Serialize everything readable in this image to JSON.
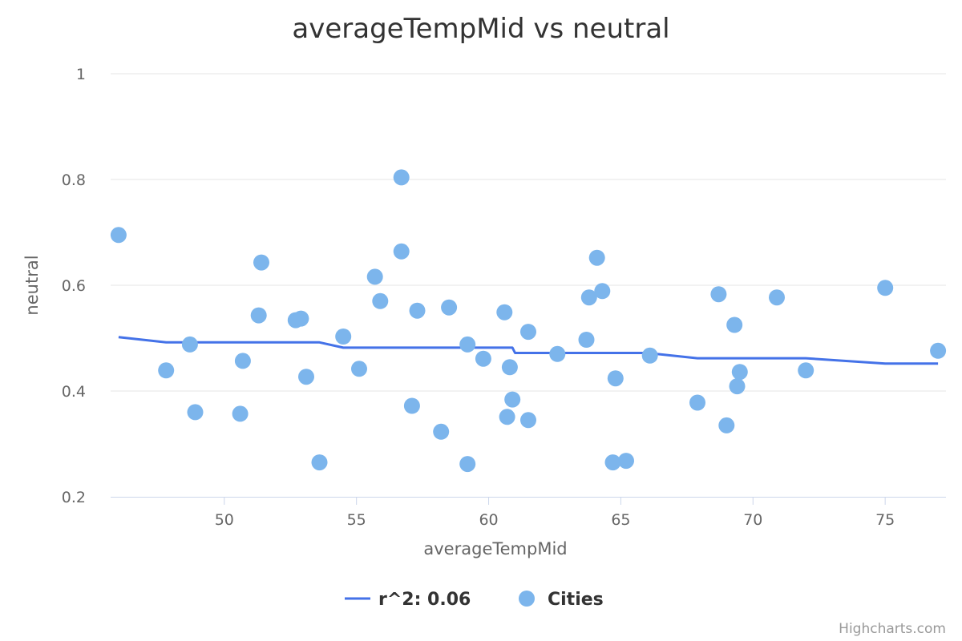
{
  "chart_data": {
    "type": "scatter",
    "title": "averageTempMid vs neutral",
    "xlabel": "averageTempMid",
    "ylabel": "neutral",
    "xlim": [
      45.7,
      77.3
    ],
    "ylim": [
      0.2,
      1.0
    ],
    "x_ticks": [
      50,
      55,
      60,
      65,
      70,
      75
    ],
    "y_ticks": [
      0.2,
      0.4,
      0.6,
      0.8,
      1.0
    ],
    "x_tick_labels": [
      "50",
      "55",
      "60",
      "65",
      "70",
      "75"
    ],
    "y_tick_labels": [
      "0.2",
      "0.4",
      "0.6",
      "0.8",
      "1"
    ],
    "grid": true,
    "legend_position": "bottom-center",
    "series": [
      {
        "name": "r^2: 0.06",
        "type": "line",
        "color": "#4472e8",
        "points": [
          [
            46.0,
            0.502
          ],
          [
            47.8,
            0.492
          ],
          [
            53.6,
            0.492
          ],
          [
            54.5,
            0.482
          ],
          [
            60.9,
            0.482
          ],
          [
            61.0,
            0.472
          ],
          [
            66.0,
            0.472
          ],
          [
            67.9,
            0.462
          ],
          [
            72.0,
            0.462
          ],
          [
            75.0,
            0.452
          ],
          [
            77.0,
            0.452
          ]
        ]
      },
      {
        "name": "Cities",
        "type": "scatter",
        "color": "#7cb5ec",
        "points": [
          [
            46.0,
            0.695
          ],
          [
            47.8,
            0.439
          ],
          [
            48.7,
            0.488
          ],
          [
            48.9,
            0.36
          ],
          [
            50.6,
            0.357
          ],
          [
            50.7,
            0.457
          ],
          [
            51.3,
            0.543
          ],
          [
            51.4,
            0.643
          ],
          [
            52.7,
            0.534
          ],
          [
            52.9,
            0.537
          ],
          [
            53.1,
            0.427
          ],
          [
            53.6,
            0.265
          ],
          [
            54.5,
            0.503
          ],
          [
            55.1,
            0.442
          ],
          [
            55.7,
            0.616
          ],
          [
            55.9,
            0.57
          ],
          [
            56.7,
            0.664
          ],
          [
            56.7,
            0.804
          ],
          [
            57.1,
            0.372
          ],
          [
            57.3,
            0.552
          ],
          [
            58.2,
            0.323
          ],
          [
            58.5,
            0.558
          ],
          [
            59.2,
            0.488
          ],
          [
            59.2,
            0.262
          ],
          [
            59.8,
            0.461
          ],
          [
            60.6,
            0.549
          ],
          [
            60.7,
            0.351
          ],
          [
            60.8,
            0.445
          ],
          [
            60.9,
            0.384
          ],
          [
            61.5,
            0.345
          ],
          [
            61.5,
            0.512
          ],
          [
            62.6,
            0.47
          ],
          [
            63.7,
            0.497
          ],
          [
            63.8,
            0.577
          ],
          [
            64.1,
            0.652
          ],
          [
            64.3,
            0.589
          ],
          [
            64.7,
            0.265
          ],
          [
            64.8,
            0.424
          ],
          [
            65.2,
            0.268
          ],
          [
            66.1,
            0.467
          ],
          [
            67.9,
            0.378
          ],
          [
            68.7,
            0.583
          ],
          [
            69.0,
            0.335
          ],
          [
            69.3,
            0.525
          ],
          [
            69.4,
            0.409
          ],
          [
            69.5,
            0.436
          ],
          [
            70.9,
            0.577
          ],
          [
            72.0,
            0.439
          ],
          [
            75.0,
            0.595
          ],
          [
            77.0,
            0.476
          ]
        ]
      }
    ]
  },
  "credits": {
    "text": "Highcharts.com"
  }
}
